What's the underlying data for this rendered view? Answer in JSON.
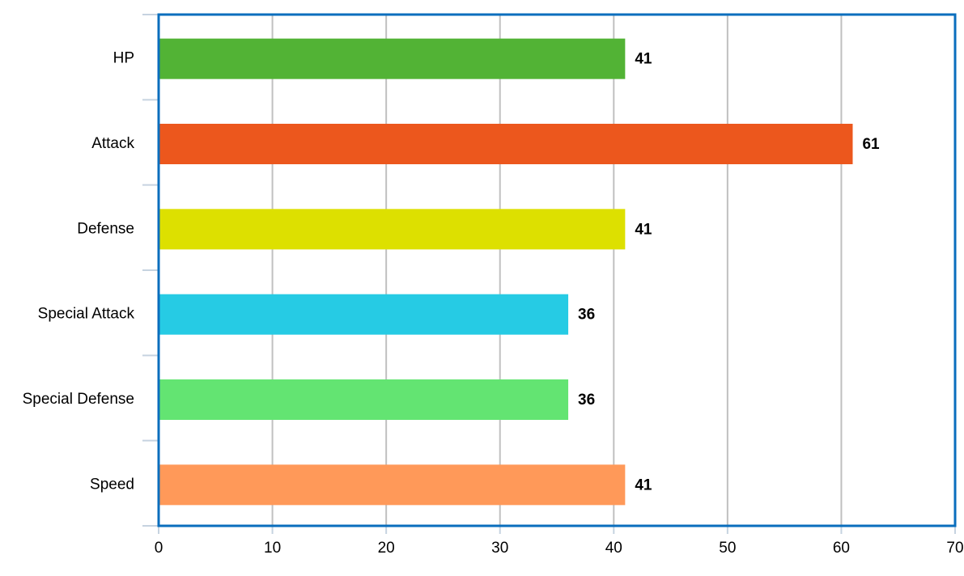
{
  "chart_data": {
    "type": "bar",
    "categories": [
      "HP",
      "Attack",
      "Defense",
      "Special Attack",
      "Special Defense",
      "Speed"
    ],
    "values": [
      41,
      61,
      41,
      36,
      36,
      41
    ],
    "colors": [
      "#52b335",
      "#ec571d",
      "#dde000",
      "#26cbe4",
      "#63e472",
      "#ff9959"
    ],
    "xlim": [
      0,
      70
    ],
    "xticks": [
      0,
      10,
      20,
      30,
      40,
      50,
      60,
      70
    ],
    "grid": true
  }
}
